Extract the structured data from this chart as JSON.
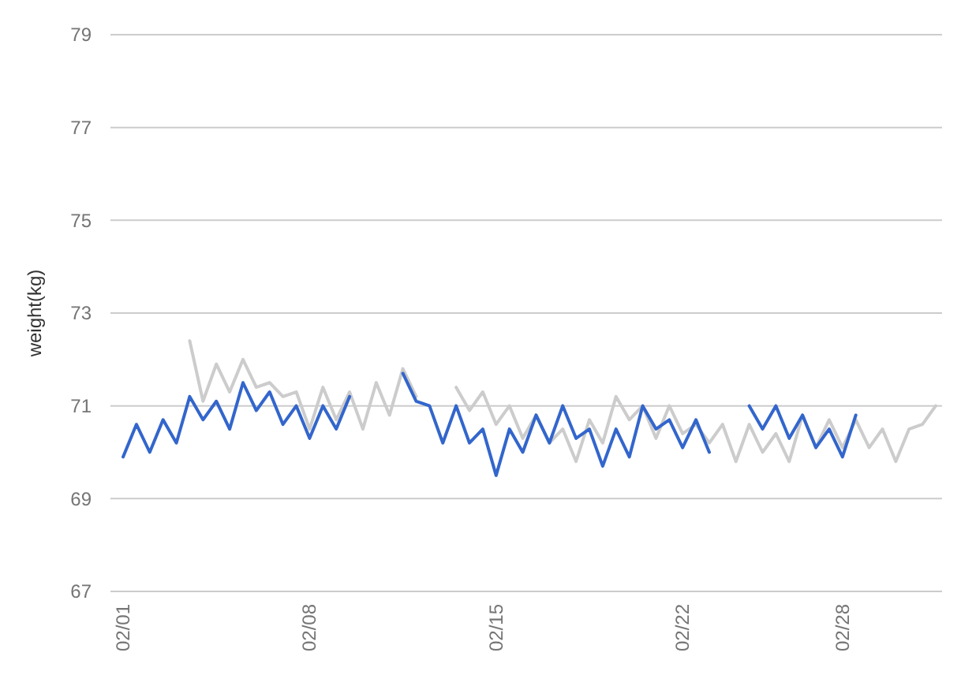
{
  "chart_data": {
    "type": "line",
    "ylabel": "weight(kg)",
    "categories": [
      "02/01",
      null,
      null,
      null,
      null,
      null,
      null,
      null,
      null,
      null,
      null,
      null,
      null,
      null,
      "02/08",
      null,
      null,
      null,
      null,
      null,
      null,
      null,
      null,
      null,
      null,
      null,
      null,
      null,
      "02/15",
      null,
      null,
      null,
      null,
      null,
      null,
      null,
      null,
      null,
      null,
      null,
      null,
      null,
      "02/22",
      null,
      null,
      null,
      null,
      null,
      null,
      null,
      null,
      null,
      null,
      null,
      "02/28",
      null,
      null,
      null,
      null,
      null,
      null,
      null
    ],
    "series": [
      {
        "color": "#cccccc",
        "values": [
          null,
          null,
          null,
          null,
          null,
          72.4,
          71.1,
          71.9,
          71.3,
          72.0,
          71.4,
          71.5,
          71.2,
          71.3,
          70.5,
          71.4,
          70.7,
          71.3,
          70.5,
          71.5,
          70.8,
          71.8,
          71.2,
          null,
          null,
          71.4,
          70.9,
          71.3,
          70.6,
          71.0,
          70.3,
          70.8,
          70.2,
          70.5,
          69.8,
          70.7,
          70.2,
          71.2,
          70.7,
          71.0,
          70.3,
          71.0,
          70.4,
          70.6,
          70.2,
          70.6,
          69.8,
          70.6,
          70.0,
          70.4,
          69.8,
          70.8,
          70.1,
          70.7,
          70.1,
          70.7,
          70.1,
          70.5,
          69.8,
          70.5,
          70.6,
          71.0
        ]
      },
      {
        "color": "#3366cc",
        "values": [
          69.9,
          70.6,
          70.0,
          70.7,
          70.2,
          71.2,
          70.7,
          71.1,
          70.5,
          71.5,
          70.9,
          71.3,
          70.6,
          71.0,
          70.3,
          71.0,
          70.5,
          71.2,
          null,
          null,
          null,
          71.7,
          71.1,
          71.0,
          70.2,
          71.0,
          70.2,
          70.5,
          69.5,
          70.5,
          70.0,
          70.8,
          70.2,
          71.0,
          70.3,
          70.5,
          69.7,
          70.5,
          69.9,
          71.0,
          70.5,
          70.7,
          70.1,
          70.7,
          70.0,
          null,
          null,
          71.0,
          70.5,
          71.0,
          70.3,
          70.8,
          70.1,
          70.5,
          69.9,
          70.8,
          null,
          null,
          null,
          null,
          null,
          null
        ]
      }
    ],
    "ylim": [
      67,
      79
    ],
    "yticks": [
      67,
      69,
      71,
      73,
      75,
      77,
      79
    ],
    "grid": "y",
    "line_style": "solid",
    "marker": "none"
  }
}
